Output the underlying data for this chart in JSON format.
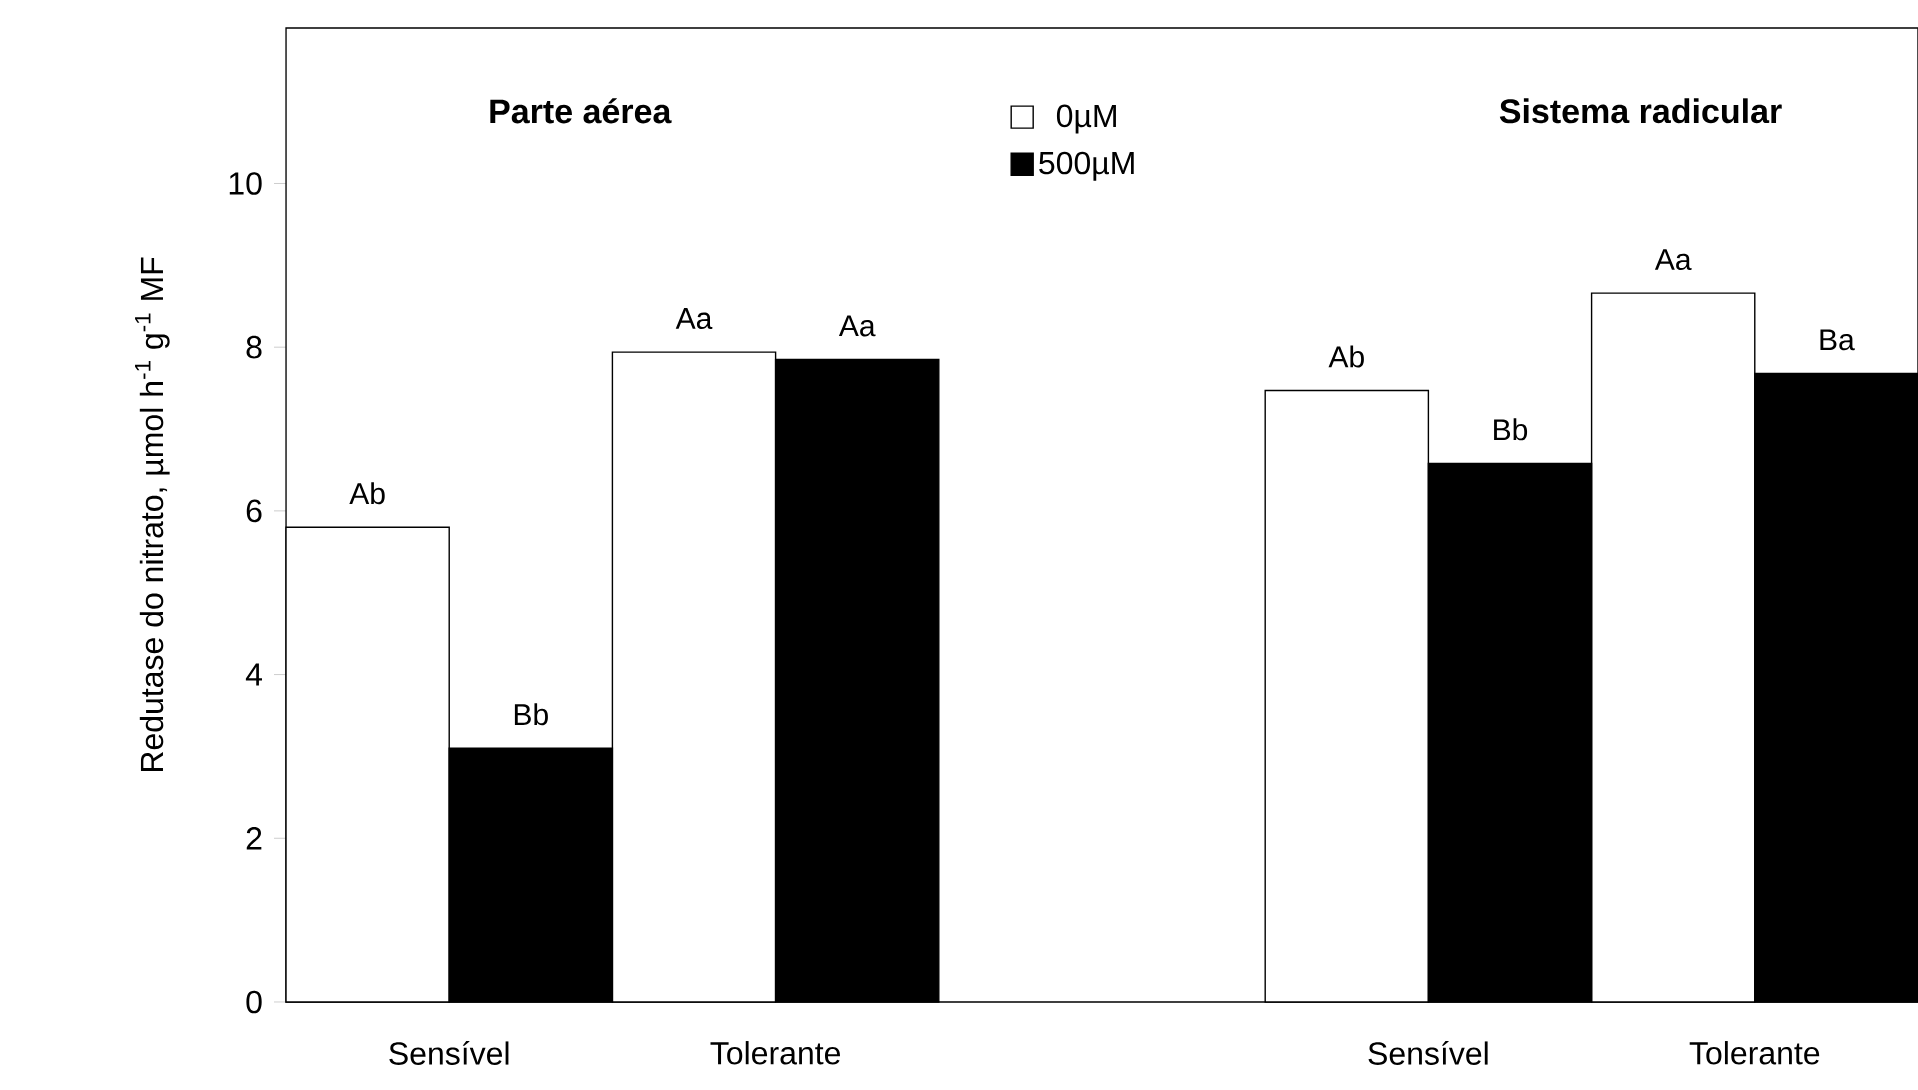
{
  "chart_data": {
    "type": "bar",
    "ylabel": "Redutase do nitrato, µmol h$^{-1}$ g$^{-1}$ MF",
    "categories": [
      "Sensível",
      "Tolerante",
      null,
      "Sensível",
      "Tolerante"
    ],
    "series": [
      {
        "name": "0µM",
        "color": "#ffffff",
        "values": [
          5.8,
          7.94,
          null,
          7.47,
          8.66
        ],
        "value_labels": [
          "Ab",
          "Aa",
          null,
          "Ab",
          "Aa"
        ]
      },
      {
        "name": "500µM",
        "color": "#000000",
        "values": [
          3.1,
          7.85,
          null,
          6.58,
          7.68
        ],
        "value_labels": [
          "Bb",
          "Aa",
          null,
          "Bb",
          "Ba"
        ]
      }
    ],
    "ylim": [
      0,
      11.9
    ],
    "yticks": [
      0,
      2,
      4,
      6,
      8,
      10
    ],
    "legend": "top",
    "annotations": [
      "Parte aérea",
      "Sistema radicular"
    ]
  }
}
